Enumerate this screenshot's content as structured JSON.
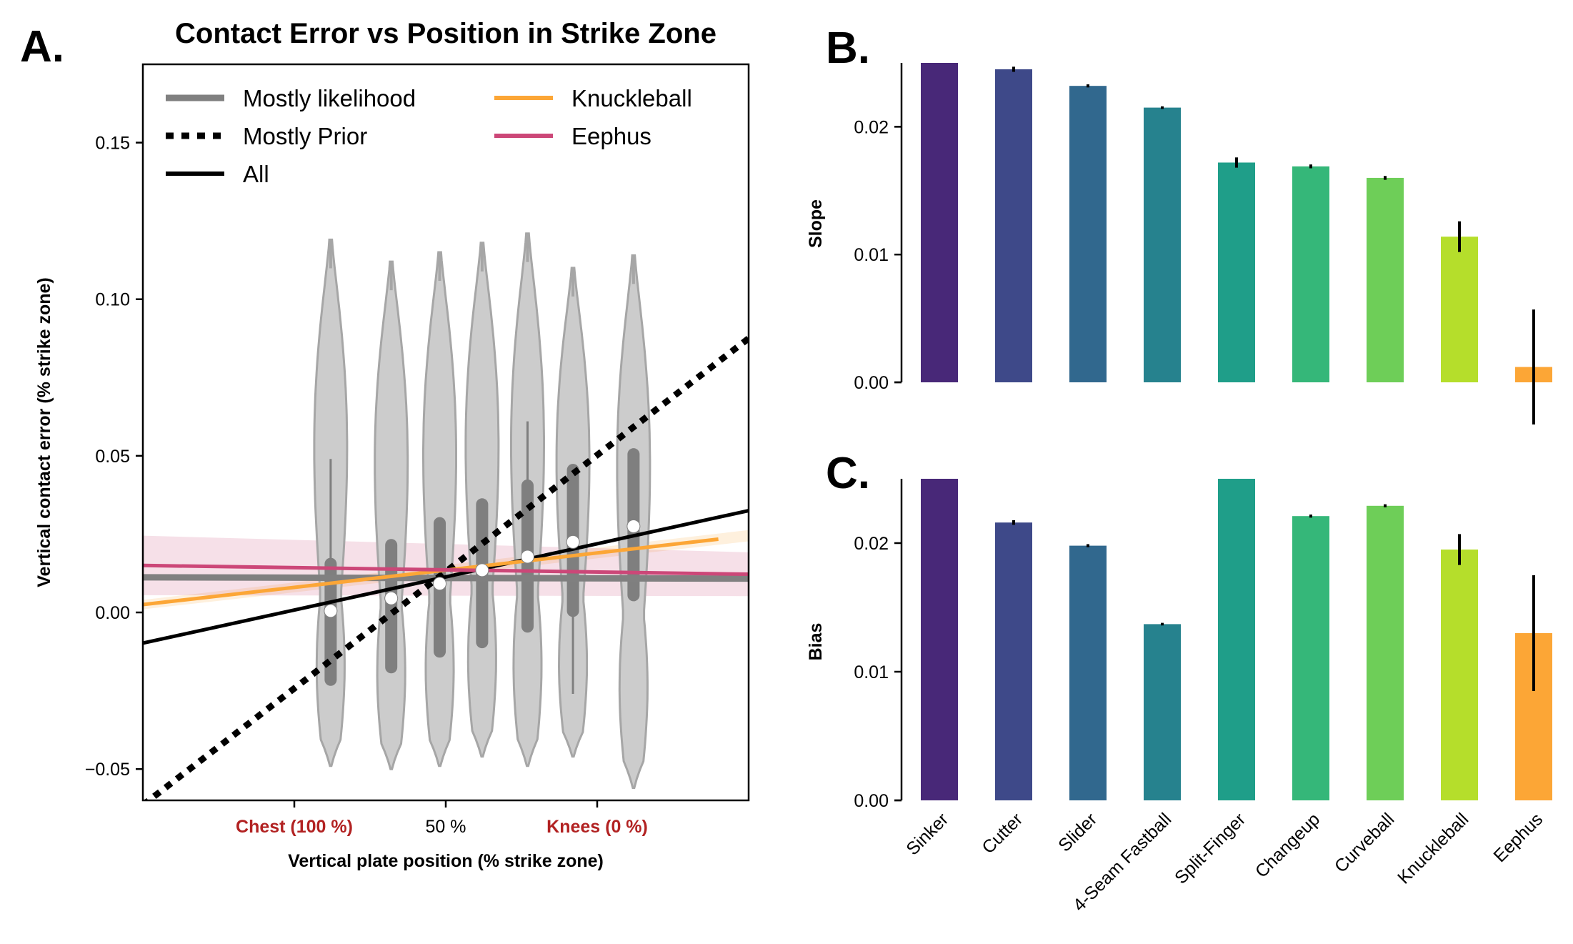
{
  "chart_data": [
    {
      "panel": "A.",
      "type": "line",
      "title": "Contact Error vs Position in Strike Zone",
      "xlabel": "Vertical plate position (% strike zone)",
      "ylabel": "Vertical contact error (% strike zone)",
      "xlim": [
        -0.5,
        1.5
      ],
      "ylim": [
        -0.06,
        0.175
      ],
      "x_ticks": [
        {
          "x": 0.0,
          "label": "Chest (100 %)",
          "color": "#b22222"
        },
        {
          "x": 0.5,
          "label": "50 %",
          "color": "#000000"
        },
        {
          "x": 1.0,
          "label": "Knees (0 %)",
          "color": "#b22222"
        }
      ],
      "y_ticks": [
        {
          "y": -0.05,
          "label": "−0.05"
        },
        {
          "y": 0.0,
          "label": "0.00"
        },
        {
          "y": 0.05,
          "label": "0.05"
        },
        {
          "y": 0.1,
          "label": "0.10"
        },
        {
          "y": 0.15,
          "label": "0.15"
        }
      ],
      "legend": {
        "placement": "top",
        "ncol": 2
      },
      "series": [
        {
          "name": "Mostly likelihood",
          "style": "solid-thick",
          "color": "#808080",
          "x": [
            -0.5,
            1.5
          ],
          "y": [
            0.0112,
            0.0108
          ]
        },
        {
          "name": "Mostly Prior",
          "style": "dotted",
          "color": "#000000",
          "x": [
            -0.5,
            1.5
          ],
          "y": [
            -0.0615,
            0.0875
          ]
        },
        {
          "name": "All",
          "style": "solid",
          "color": "#000000",
          "x": [
            -0.5,
            1.5
          ],
          "y": [
            -0.0098,
            0.0325
          ]
        },
        {
          "name": "Knuckleball",
          "style": "solid",
          "color": "#fca636",
          "x": [
            -0.5,
            1.5
          ],
          "y": [
            0.0025,
            0.0245
          ],
          "band": [
            0.0015,
            0.0018
          ]
        },
        {
          "name": "Eephus",
          "style": "solid",
          "color": "#cc4778",
          "x": [
            -0.5,
            1.5
          ],
          "y": [
            0.015,
            0.0122
          ],
          "band": [
            0.0095,
            0.007
          ]
        }
      ],
      "violins": [
        {
          "x": 0.12,
          "min": -0.049,
          "max": 0.119,
          "q1": -0.0215,
          "q3": 0.0155,
          "whisk_low": -0.022,
          "whisk_high": 0.049,
          "median": 0.0005
        },
        {
          "x": 0.32,
          "min": -0.05,
          "max": 0.112,
          "q1": -0.0175,
          "q3": 0.0215,
          "whisk_low": -0.018,
          "whisk_high": 0.022,
          "median": 0.0045
        },
        {
          "x": 0.48,
          "min": -0.049,
          "max": 0.115,
          "q1": -0.0125,
          "q3": 0.0285,
          "whisk_low": -0.013,
          "whisk_high": 0.029,
          "median": 0.0092
        },
        {
          "x": 0.62,
          "min": -0.046,
          "max": 0.118,
          "q1": -0.0095,
          "q3": 0.0345,
          "whisk_low": -0.01,
          "whisk_high": 0.035,
          "median": 0.0135
        },
        {
          "x": 0.77,
          "min": -0.049,
          "max": 0.121,
          "q1": -0.0045,
          "q3": 0.0405,
          "whisk_low": -0.005,
          "whisk_high": 0.061,
          "median": 0.0178
        },
        {
          "x": 0.92,
          "min": -0.046,
          "max": 0.11,
          "q1": 0.0005,
          "q3": 0.0455,
          "whisk_low": -0.026,
          "whisk_high": 0.046,
          "median": 0.0225
        },
        {
          "x": 1.12,
          "min": -0.056,
          "max": 0.114,
          "q1": 0.0055,
          "q3": 0.0505,
          "whisk_low": 0.005,
          "whisk_high": 0.051,
          "median": 0.0275
        }
      ]
    },
    {
      "panel": "B.",
      "type": "bar",
      "ylabel": "Slope",
      "ylim": [
        0,
        0.025
      ],
      "y_ticks": [
        {
          "y": 0,
          "label": "0.00"
        },
        {
          "y": 0.01,
          "label": "0.01"
        },
        {
          "y": 0.02,
          "label": "0.02"
        }
      ],
      "categories": [
        "Sinker",
        "Cutter",
        "Slider",
        "4-Seam Fastball",
        "Split-Finger",
        "Changeup",
        "Curveball",
        "Knuckleball",
        "Eephus"
      ],
      "values": [
        0.025,
        0.0245,
        0.0232,
        0.0215,
        0.0172,
        0.0169,
        0.016,
        0.0114,
        0.0012
      ],
      "errors": [
        0,
        0.0002,
        0.00012,
        0.0001,
        0.0004,
        0.00015,
        0.00015,
        0.0012,
        0.0045
      ]
    },
    {
      "panel": "C.",
      "type": "bar",
      "ylabel": "Bias",
      "ylim": [
        0,
        0.025
      ],
      "y_ticks": [
        {
          "y": 0,
          "label": "0.00"
        },
        {
          "y": 0.01,
          "label": "0.01"
        },
        {
          "y": 0.02,
          "label": "0.02"
        }
      ],
      "categories": [
        "Sinker",
        "Cutter",
        "Slider",
        "4-Seam Fastball",
        "Split-Finger",
        "Changeup",
        "Curveball",
        "Knuckleball",
        "Eephus"
      ],
      "values": [
        0.025,
        0.0216,
        0.0198,
        0.0137,
        0.025,
        0.0221,
        0.0229,
        0.0195,
        0.013
      ],
      "errors": [
        0,
        0.00018,
        0.00012,
        0.0001,
        0,
        0.00012,
        0.00012,
        0.0012,
        0.0045
      ]
    }
  ],
  "colors": {
    "bars": [
      "#482878",
      "#3e4989",
      "#31688e",
      "#26828e",
      "#1f9e89",
      "#35b779",
      "#6ece58",
      "#b5de2b",
      "#fca636",
      "#cc4778"
    ],
    "violin_fill": "#cccccc",
    "violin_edge": "#a6a6a6",
    "box": "#7f7f7f"
  }
}
